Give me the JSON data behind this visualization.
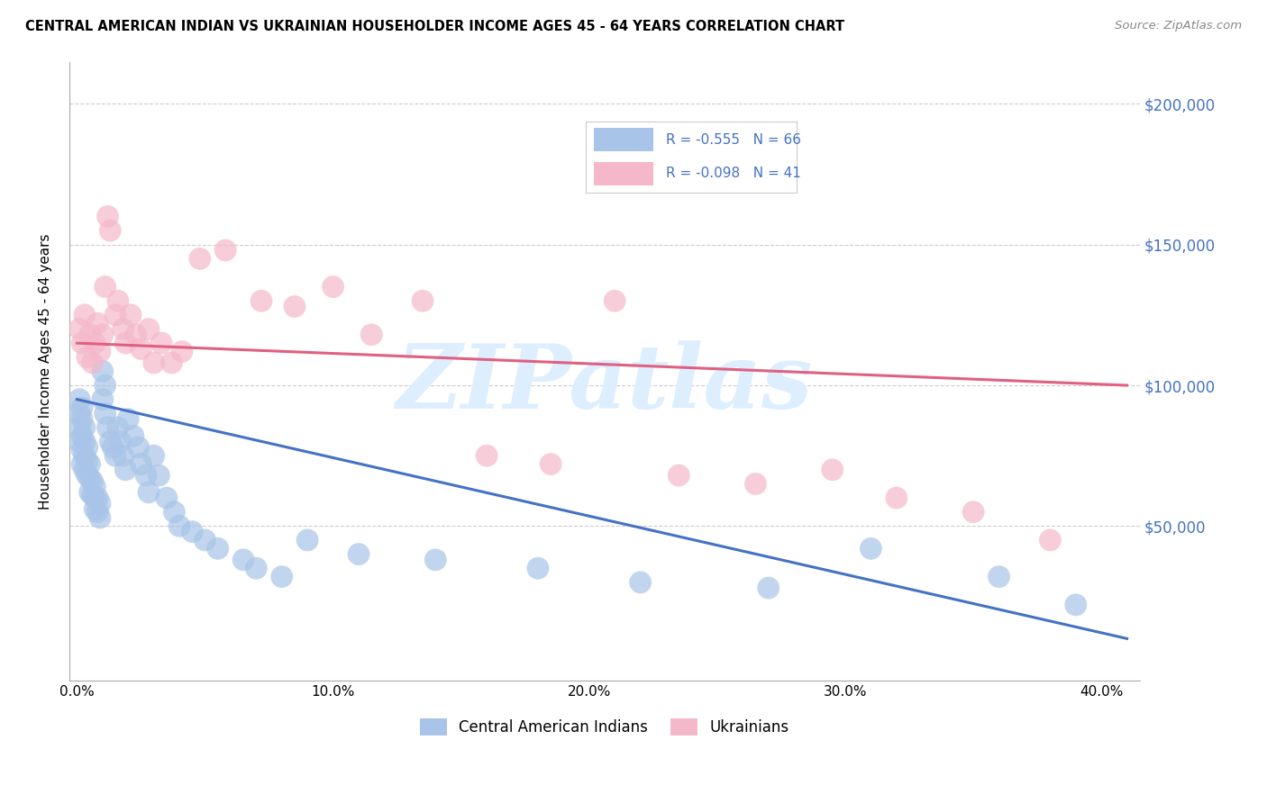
{
  "title": "CENTRAL AMERICAN INDIAN VS UKRAINIAN HOUSEHOLDER INCOME AGES 45 - 64 YEARS CORRELATION CHART",
  "source": "Source: ZipAtlas.com",
  "ylabel": "Householder Income Ages 45 - 64 years",
  "xlabel_ticks": [
    "0.0%",
    "10.0%",
    "20.0%",
    "30.0%",
    "40.0%"
  ],
  "xlabel_tick_vals": [
    0.0,
    0.1,
    0.2,
    0.3,
    0.4
  ],
  "ylabel_ticks": [
    "$50,000",
    "$100,000",
    "$150,000",
    "$200,000"
  ],
  "ylabel_tick_vals": [
    50000,
    100000,
    150000,
    200000
  ],
  "ylim": [
    -5000,
    215000
  ],
  "xlim": [
    -0.003,
    0.415
  ],
  "blue_R": -0.555,
  "blue_N": 66,
  "pink_R": -0.098,
  "pink_N": 41,
  "blue_color": "#A8C4E8",
  "pink_color": "#F4B8CA",
  "blue_line_color": "#4472C4",
  "pink_line_color": "#E06080",
  "legend_text_color": "#4472C4",
  "background_color": "#FFFFFF",
  "grid_color": "#CCCCCC",
  "watermark": "ZIPatlas",
  "watermark_color": "#DDEEFF",
  "blue_x": [
    0.001,
    0.001,
    0.001,
    0.001,
    0.002,
    0.002,
    0.002,
    0.002,
    0.002,
    0.003,
    0.003,
    0.003,
    0.003,
    0.004,
    0.004,
    0.004,
    0.005,
    0.005,
    0.005,
    0.006,
    0.006,
    0.007,
    0.007,
    0.007,
    0.008,
    0.008,
    0.009,
    0.009,
    0.01,
    0.01,
    0.011,
    0.011,
    0.012,
    0.013,
    0.014,
    0.015,
    0.016,
    0.017,
    0.018,
    0.019,
    0.02,
    0.022,
    0.024,
    0.025,
    0.027,
    0.028,
    0.03,
    0.032,
    0.035,
    0.038,
    0.04,
    0.045,
    0.05,
    0.055,
    0.065,
    0.07,
    0.08,
    0.09,
    0.11,
    0.14,
    0.18,
    0.22,
    0.27,
    0.31,
    0.36,
    0.39
  ],
  "blue_y": [
    95000,
    90000,
    85000,
    80000,
    92000,
    88000,
    82000,
    77000,
    72000,
    85000,
    80000,
    75000,
    70000,
    78000,
    73000,
    68000,
    72000,
    67000,
    62000,
    66000,
    61000,
    64000,
    60000,
    56000,
    60000,
    55000,
    58000,
    53000,
    105000,
    95000,
    100000,
    90000,
    85000,
    80000,
    78000,
    75000,
    85000,
    80000,
    75000,
    70000,
    88000,
    82000,
    78000,
    72000,
    68000,
    62000,
    75000,
    68000,
    60000,
    55000,
    50000,
    48000,
    45000,
    42000,
    38000,
    35000,
    32000,
    45000,
    40000,
    38000,
    35000,
    30000,
    28000,
    42000,
    32000,
    22000
  ],
  "pink_x": [
    0.001,
    0.002,
    0.003,
    0.004,
    0.005,
    0.006,
    0.007,
    0.008,
    0.009,
    0.01,
    0.011,
    0.012,
    0.013,
    0.015,
    0.016,
    0.018,
    0.019,
    0.021,
    0.023,
    0.025,
    0.028,
    0.03,
    0.033,
    0.037,
    0.041,
    0.048,
    0.058,
    0.072,
    0.085,
    0.1,
    0.115,
    0.135,
    0.16,
    0.185,
    0.21,
    0.235,
    0.265,
    0.295,
    0.32,
    0.35,
    0.38
  ],
  "pink_y": [
    120000,
    115000,
    125000,
    110000,
    118000,
    108000,
    115000,
    122000,
    112000,
    118000,
    135000,
    160000,
    155000,
    125000,
    130000,
    120000,
    115000,
    125000,
    118000,
    113000,
    120000,
    108000,
    115000,
    108000,
    112000,
    145000,
    148000,
    130000,
    128000,
    135000,
    118000,
    130000,
    75000,
    72000,
    130000,
    68000,
    65000,
    70000,
    60000,
    55000,
    45000
  ]
}
